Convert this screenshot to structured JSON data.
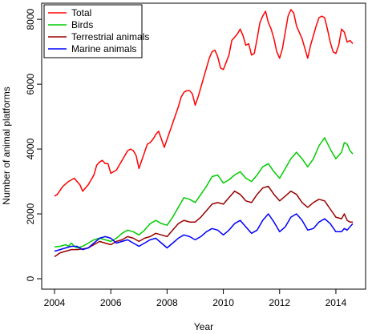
{
  "chart_data": {
    "type": "line",
    "xlabel": "Year",
    "ylabel": "Number of animal platforms",
    "xlim": [
      2004,
      2014.6
    ],
    "ylim": [
      0,
      8300
    ],
    "x_ticks": [
      2004,
      2006,
      2008,
      2010,
      2012,
      2014
    ],
    "y_ticks": [
      0,
      2000,
      4000,
      6000,
      8000
    ],
    "grid": false,
    "legend_position": "top-left",
    "series": [
      {
        "name": "Total",
        "color": "#ff0000",
        "points": [
          [
            2004.0,
            2550
          ],
          [
            2004.1,
            2600
          ],
          [
            2004.3,
            2850
          ],
          [
            2004.5,
            3000
          ],
          [
            2004.6,
            3050
          ],
          [
            2004.7,
            3100
          ],
          [
            2004.8,
            3000
          ],
          [
            2004.9,
            2900
          ],
          [
            2005.0,
            2700
          ],
          [
            2005.2,
            2900
          ],
          [
            2005.4,
            3200
          ],
          [
            2005.5,
            3500
          ],
          [
            2005.6,
            3600
          ],
          [
            2005.7,
            3650
          ],
          [
            2005.8,
            3550
          ],
          [
            2005.9,
            3550
          ],
          [
            2006.0,
            3250
          ],
          [
            2006.2,
            3350
          ],
          [
            2006.4,
            3650
          ],
          [
            2006.5,
            3800
          ],
          [
            2006.6,
            3950
          ],
          [
            2006.7,
            4000
          ],
          [
            2006.8,
            3950
          ],
          [
            2006.9,
            3800
          ],
          [
            2007.0,
            3400
          ],
          [
            2007.1,
            3650
          ],
          [
            2007.2,
            3900
          ],
          [
            2007.3,
            4150
          ],
          [
            2007.4,
            4200
          ],
          [
            2007.5,
            4300
          ],
          [
            2007.6,
            4450
          ],
          [
            2007.7,
            4550
          ],
          [
            2007.8,
            4300
          ],
          [
            2007.9,
            4050
          ],
          [
            2008.0,
            4300
          ],
          [
            2008.2,
            4800
          ],
          [
            2008.4,
            5300
          ],
          [
            2008.5,
            5600
          ],
          [
            2008.6,
            5750
          ],
          [
            2008.7,
            5800
          ],
          [
            2008.8,
            5800
          ],
          [
            2008.9,
            5700
          ],
          [
            2009.0,
            5350
          ],
          [
            2009.1,
            5600
          ],
          [
            2009.3,
            6200
          ],
          [
            2009.4,
            6500
          ],
          [
            2009.5,
            6800
          ],
          [
            2009.6,
            7000
          ],
          [
            2009.7,
            7050
          ],
          [
            2009.8,
            6850
          ],
          [
            2009.9,
            6500
          ],
          [
            2010.0,
            6450
          ],
          [
            2010.2,
            6900
          ],
          [
            2010.3,
            7350
          ],
          [
            2010.5,
            7550
          ],
          [
            2010.6,
            7700
          ],
          [
            2010.7,
            7500
          ],
          [
            2010.8,
            7200
          ],
          [
            2010.9,
            7250
          ],
          [
            2011.0,
            6900
          ],
          [
            2011.1,
            6950
          ],
          [
            2011.2,
            7400
          ],
          [
            2011.3,
            7900
          ],
          [
            2011.4,
            8100
          ],
          [
            2011.5,
            8250
          ],
          [
            2011.6,
            7900
          ],
          [
            2011.7,
            7700
          ],
          [
            2011.8,
            7400
          ],
          [
            2011.9,
            7000
          ],
          [
            2012.0,
            6800
          ],
          [
            2012.1,
            7100
          ],
          [
            2012.2,
            7600
          ],
          [
            2012.3,
            8100
          ],
          [
            2012.4,
            8300
          ],
          [
            2012.5,
            8200
          ],
          [
            2012.6,
            7800
          ],
          [
            2012.8,
            7400
          ],
          [
            2013.0,
            6800
          ],
          [
            2013.1,
            7200
          ],
          [
            2013.3,
            7800
          ],
          [
            2013.4,
            8050
          ],
          [
            2013.5,
            8100
          ],
          [
            2013.6,
            8050
          ],
          [
            2013.7,
            7700
          ],
          [
            2013.8,
            7300
          ],
          [
            2013.9,
            7000
          ],
          [
            2014.0,
            6950
          ],
          [
            2014.1,
            7200
          ],
          [
            2014.2,
            7700
          ],
          [
            2014.3,
            7600
          ],
          [
            2014.4,
            7300
          ],
          [
            2014.5,
            7350
          ],
          [
            2014.6,
            7250
          ]
        ]
      },
      {
        "name": "Birds",
        "color": "#00cc00",
        "points": [
          [
            2004.0,
            980
          ],
          [
            2004.2,
            1000
          ],
          [
            2004.4,
            1050
          ],
          [
            2004.5,
            1000
          ],
          [
            2004.6,
            1100
          ],
          [
            2004.7,
            1000
          ],
          [
            2004.8,
            950
          ],
          [
            2005.0,
            1000
          ],
          [
            2005.2,
            1100
          ],
          [
            2005.4,
            1200
          ],
          [
            2005.6,
            1250
          ],
          [
            2005.8,
            1200
          ],
          [
            2006.0,
            1150
          ],
          [
            2006.2,
            1250
          ],
          [
            2006.4,
            1400
          ],
          [
            2006.6,
            1500
          ],
          [
            2006.8,
            1450
          ],
          [
            2007.0,
            1350
          ],
          [
            2007.2,
            1500
          ],
          [
            2007.4,
            1700
          ],
          [
            2007.6,
            1800
          ],
          [
            2007.8,
            1700
          ],
          [
            2008.0,
            1650
          ],
          [
            2008.2,
            1900
          ],
          [
            2008.4,
            2200
          ],
          [
            2008.6,
            2500
          ],
          [
            2008.8,
            2450
          ],
          [
            2009.0,
            2350
          ],
          [
            2009.2,
            2600
          ],
          [
            2009.4,
            2850
          ],
          [
            2009.6,
            3150
          ],
          [
            2009.8,
            3200
          ],
          [
            2010.0,
            2950
          ],
          [
            2010.2,
            3050
          ],
          [
            2010.4,
            3200
          ],
          [
            2010.6,
            3300
          ],
          [
            2010.8,
            3100
          ],
          [
            2011.0,
            3000
          ],
          [
            2011.2,
            3200
          ],
          [
            2011.4,
            3450
          ],
          [
            2011.6,
            3550
          ],
          [
            2011.8,
            3300
          ],
          [
            2012.0,
            3100
          ],
          [
            2012.2,
            3400
          ],
          [
            2012.4,
            3700
          ],
          [
            2012.6,
            3900
          ],
          [
            2012.8,
            3700
          ],
          [
            2013.0,
            3450
          ],
          [
            2013.2,
            3700
          ],
          [
            2013.4,
            4100
          ],
          [
            2013.6,
            4350
          ],
          [
            2013.8,
            4000
          ],
          [
            2014.0,
            3700
          ],
          [
            2014.2,
            3900
          ],
          [
            2014.3,
            4200
          ],
          [
            2014.4,
            4150
          ],
          [
            2014.5,
            3950
          ],
          [
            2014.6,
            3850
          ]
        ]
      },
      {
        "name": "Terrestrial animals",
        "color": "#990000",
        "points": [
          [
            2004.0,
            680
          ],
          [
            2004.2,
            800
          ],
          [
            2004.4,
            850
          ],
          [
            2004.6,
            900
          ],
          [
            2004.8,
            900
          ],
          [
            2005.0,
            920
          ],
          [
            2005.2,
            950
          ],
          [
            2005.4,
            1050
          ],
          [
            2005.6,
            1150
          ],
          [
            2005.8,
            1100
          ],
          [
            2006.0,
            1050
          ],
          [
            2006.2,
            1150
          ],
          [
            2006.4,
            1200
          ],
          [
            2006.6,
            1300
          ],
          [
            2006.8,
            1250
          ],
          [
            2007.0,
            1150
          ],
          [
            2007.2,
            1250
          ],
          [
            2007.4,
            1300
          ],
          [
            2007.6,
            1400
          ],
          [
            2007.8,
            1350
          ],
          [
            2008.0,
            1300
          ],
          [
            2008.2,
            1500
          ],
          [
            2008.4,
            1700
          ],
          [
            2008.6,
            1800
          ],
          [
            2008.8,
            1750
          ],
          [
            2009.0,
            1750
          ],
          [
            2009.2,
            1900
          ],
          [
            2009.4,
            2100
          ],
          [
            2009.6,
            2300
          ],
          [
            2009.8,
            2350
          ],
          [
            2010.0,
            2300
          ],
          [
            2010.2,
            2500
          ],
          [
            2010.4,
            2700
          ],
          [
            2010.6,
            2600
          ],
          [
            2010.8,
            2400
          ],
          [
            2011.0,
            2350
          ],
          [
            2011.2,
            2600
          ],
          [
            2011.4,
            2800
          ],
          [
            2011.6,
            2850
          ],
          [
            2011.8,
            2600
          ],
          [
            2012.0,
            2400
          ],
          [
            2012.2,
            2550
          ],
          [
            2012.4,
            2700
          ],
          [
            2012.6,
            2600
          ],
          [
            2012.8,
            2350
          ],
          [
            2013.0,
            2200
          ],
          [
            2013.2,
            2350
          ],
          [
            2013.4,
            2450
          ],
          [
            2013.6,
            2400
          ],
          [
            2013.8,
            2150
          ],
          [
            2014.0,
            1900
          ],
          [
            2014.2,
            1850
          ],
          [
            2014.3,
            2000
          ],
          [
            2014.4,
            1800
          ],
          [
            2014.5,
            1750
          ],
          [
            2014.6,
            1750
          ]
        ]
      },
      {
        "name": "Marine animals",
        "color": "#0000ff",
        "points": [
          [
            2004.0,
            850
          ],
          [
            2004.2,
            900
          ],
          [
            2004.4,
            950
          ],
          [
            2004.6,
            1000
          ],
          [
            2004.8,
            1000
          ],
          [
            2005.0,
            900
          ],
          [
            2005.2,
            950
          ],
          [
            2005.4,
            1100
          ],
          [
            2005.6,
            1250
          ],
          [
            2005.8,
            1300
          ],
          [
            2006.0,
            1250
          ],
          [
            2006.2,
            1100
          ],
          [
            2006.4,
            1150
          ],
          [
            2006.6,
            1200
          ],
          [
            2006.8,
            1100
          ],
          [
            2007.0,
            1000
          ],
          [
            2007.2,
            1100
          ],
          [
            2007.4,
            1200
          ],
          [
            2007.6,
            1250
          ],
          [
            2007.8,
            1100
          ],
          [
            2008.0,
            950
          ],
          [
            2008.2,
            1100
          ],
          [
            2008.4,
            1250
          ],
          [
            2008.6,
            1350
          ],
          [
            2008.8,
            1300
          ],
          [
            2009.0,
            1200
          ],
          [
            2009.2,
            1300
          ],
          [
            2009.4,
            1450
          ],
          [
            2009.6,
            1550
          ],
          [
            2009.8,
            1500
          ],
          [
            2010.0,
            1350
          ],
          [
            2010.2,
            1500
          ],
          [
            2010.4,
            1700
          ],
          [
            2010.6,
            1800
          ],
          [
            2010.8,
            1600
          ],
          [
            2011.0,
            1400
          ],
          [
            2011.2,
            1500
          ],
          [
            2011.4,
            1800
          ],
          [
            2011.6,
            2000
          ],
          [
            2011.8,
            1750
          ],
          [
            2012.0,
            1450
          ],
          [
            2012.2,
            1600
          ],
          [
            2012.4,
            1900
          ],
          [
            2012.6,
            2000
          ],
          [
            2012.8,
            1800
          ],
          [
            2013.0,
            1500
          ],
          [
            2013.2,
            1550
          ],
          [
            2013.4,
            1750
          ],
          [
            2013.6,
            1850
          ],
          [
            2013.8,
            1700
          ],
          [
            2014.0,
            1450
          ],
          [
            2014.2,
            1450
          ],
          [
            2014.3,
            1550
          ],
          [
            2014.4,
            1500
          ],
          [
            2014.5,
            1600
          ],
          [
            2014.6,
            1700
          ]
        ]
      }
    ]
  }
}
